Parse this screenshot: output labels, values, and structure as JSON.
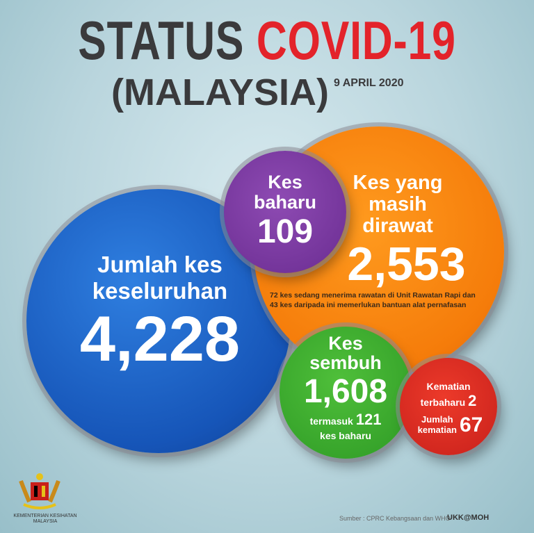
{
  "header": {
    "title_part1": "STATUS",
    "title_part2": "COVID-19",
    "subtitle": "(MALAYSIA)",
    "date": "9 APRIL 2020"
  },
  "total": {
    "label_line1": "Jumlah kes",
    "label_line2": "keseluruhan",
    "value": "4,228",
    "color": "#1a5fc4"
  },
  "new_cases": {
    "label_line1": "Kes",
    "label_line2": "baharu",
    "value": "109",
    "color": "#7a3aa0"
  },
  "active": {
    "label_line1": "Kes yang",
    "label_line2": "masih",
    "label_line3": "dirawat",
    "value": "2,553",
    "note_line1": "72 kes sedang menerima rawatan di Unit Rawatan Rapi dan",
    "note_line2": "43 kes daripada ini memerlukan bantuan alat pernafasan",
    "color": "#f58410"
  },
  "recovered": {
    "label_line1": "Kes",
    "label_line2": "sembuh",
    "value": "1,608",
    "sub_prefix": "termasuk",
    "sub_value": "121",
    "sub_suffix": "kes baharu",
    "color": "#3aa82c"
  },
  "deaths": {
    "new_label_line1": "Kematian",
    "new_label_line2": "terbaharu",
    "new_value": "2",
    "total_label_line1": "Jumlah",
    "total_label_line2": "kematian",
    "total_value": "67",
    "color": "#d82a1f"
  },
  "footer": {
    "logo_text_line1": "KEMENTERIAN KESIHATAN",
    "logo_text_line2": "MALAYSIA",
    "source": "Sumber : CPRC Kebangsaan dan WHO",
    "credit": "UKK@MOH"
  }
}
